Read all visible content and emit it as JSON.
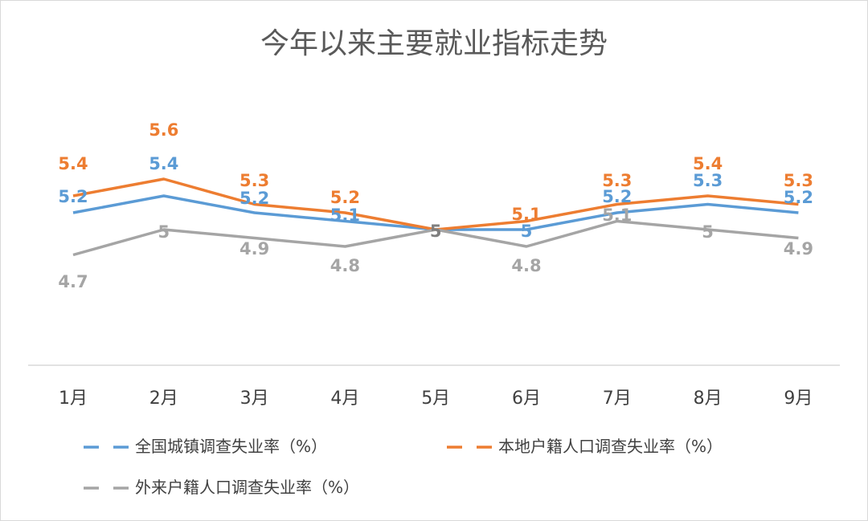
{
  "chart_data": {
    "type": "line",
    "title": "今年以来主要就业指标走势",
    "categories": [
      "1月",
      "2月",
      "3月",
      "4月",
      "5月",
      "6月",
      "7月",
      "8月",
      "9月"
    ],
    "series": [
      {
        "name": "全国城镇调查失业率（%）",
        "color": "#5b9bd5",
        "values": [
          5.2,
          5.4,
          5.2,
          5.1,
          5,
          5,
          5.2,
          5.3,
          5.2
        ],
        "labels": [
          "5.2",
          "5.4",
          "5.2",
          "5.1",
          "5",
          "5",
          "5.2",
          "5.3",
          "5.2"
        ]
      },
      {
        "name": "本地户籍人口调查失业率（%）",
        "color": "#ed7d31",
        "values": [
          5.4,
          5.6,
          5.3,
          5.2,
          5,
          5.1,
          5.3,
          5.4,
          5.3
        ],
        "labels": [
          "5.4",
          "5.6",
          "5.3",
          "5.2",
          "",
          "5.1",
          "5.3",
          "5.4",
          "5.3"
        ]
      },
      {
        "name": "外来户籍人口调查失业率（%）",
        "color": "#a5a5a5",
        "values": [
          4.7,
          5,
          4.9,
          4.8,
          5,
          4.8,
          5.1,
          5,
          4.9
        ],
        "labels": [
          "4.7",
          "5",
          "4.9",
          "4.8",
          "",
          "4.8",
          "5.1",
          "5",
          "4.9"
        ]
      }
    ],
    "legend_position": "bottom",
    "grid": false
  }
}
